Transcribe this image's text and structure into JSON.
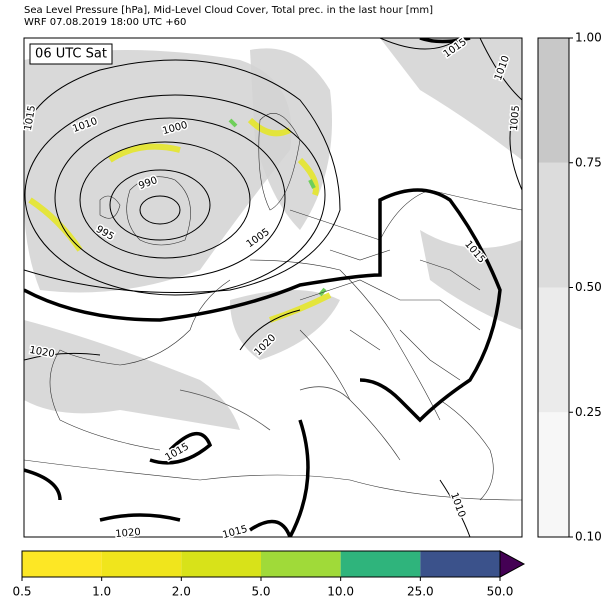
{
  "title": [
    "Sea Level Pressure [hPa], Mid-Level Cloud Cover, Total prec. in the last hour [mm]",
    "WRF 07.08.2019 18:00 UTC +60"
  ],
  "time_label": "06 UTC Sat",
  "isobar_labels": [
    1015,
    1010,
    1000,
    990,
    995,
    1005,
    1015,
    1015,
    1010,
    1005,
    1020,
    1020,
    1015,
    1010,
    1015,
    1020
  ],
  "cloud_colorbar": {
    "ticks": [
      {
        "value": 0.1,
        "label": "0.10"
      },
      {
        "value": 0.25,
        "label": "0.25"
      },
      {
        "value": 0.5,
        "label": "0.50"
      },
      {
        "value": 0.75,
        "label": "0.75"
      },
      {
        "value": 1,
        "label": "1.00"
      }
    ],
    "colors": [
      "#f7f7f7",
      "#ebebeb",
      "#dcdcdc",
      "#c8c8c8"
    ]
  },
  "precip_colorbar": {
    "ticks": [
      0.5,
      {
        "value": 1,
        "label": "1.0"
      },
      {
        "value": 2,
        "label": "2.0"
      },
      {
        "value": 5,
        "label": "5.0"
      },
      {
        "value": 10,
        "label": "10.0"
      },
      {
        "value": 25,
        "label": "25.0"
      },
      {
        "value": 50,
        "label": "50.0"
      }
    ],
    "colors": [
      "#fde725",
      "#f0e51c",
      "#d8e219",
      "#a0da39",
      "#2fb47c",
      "#3b528b"
    ],
    "extend_color": "#440154"
  }
}
